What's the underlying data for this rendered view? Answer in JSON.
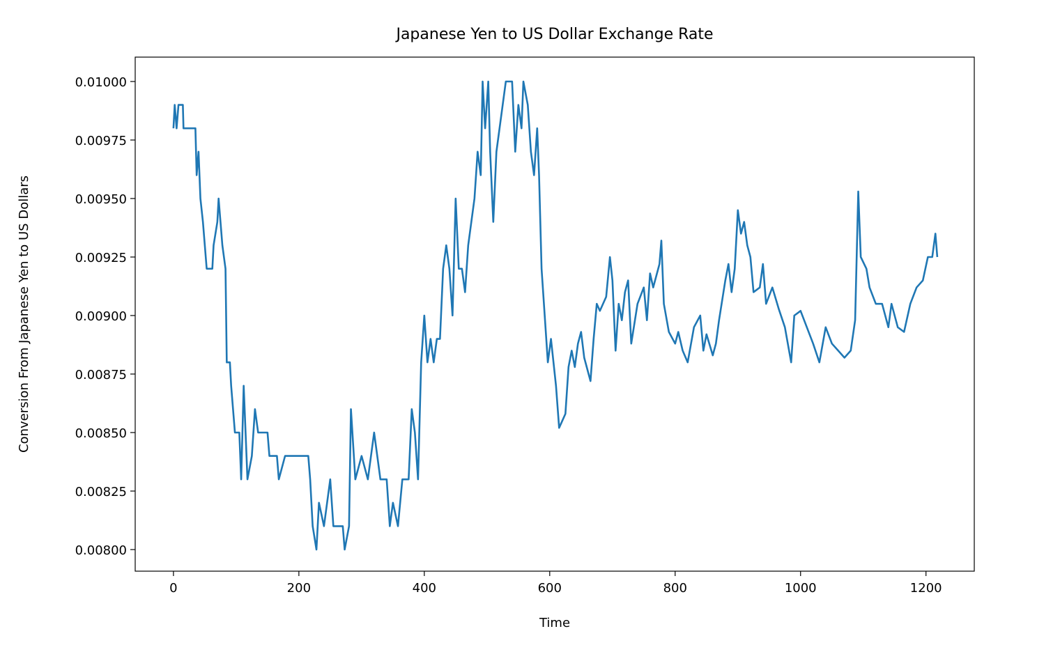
{
  "chart_data": {
    "type": "line",
    "title": "Japanese Yen to US Dollar Exchange Rate",
    "x_label": "Time",
    "y_label": "Conversion From Japanese Yen to US Dollars",
    "xlim": [
      -61,
      1277
    ],
    "ylim": [
      0.0079077,
      0.0101042
    ],
    "xticks": [
      0,
      200,
      400,
      600,
      800,
      1000,
      1200
    ],
    "yticks": [
      {
        "value": 0.008,
        "label": "0.00800"
      },
      {
        "value": 0.00825,
        "label": "0.00825"
      },
      {
        "value": 0.0085,
        "label": "0.00850"
      },
      {
        "value": 0.00875,
        "label": "0.00875"
      },
      {
        "value": 0.009,
        "label": "0.00900"
      },
      {
        "value": 0.00925,
        "label": "0.00925"
      },
      {
        "value": 0.0095,
        "label": "0.00950"
      },
      {
        "value": 0.00975,
        "label": "0.00975"
      },
      {
        "value": 0.01,
        "label": "0.01000"
      }
    ],
    "series": [
      {
        "color": "#1f77b4",
        "x": [
          0,
          2,
          5,
          8,
          15,
          16,
          25,
          35,
          37,
          40,
          43,
          47,
          50,
          53,
          62,
          64,
          70,
          72,
          75,
          78,
          83,
          85,
          90,
          92,
          95,
          98,
          105,
          108,
          112,
          118,
          125,
          130,
          135,
          150,
          153,
          165,
          168,
          178,
          200,
          215,
          218,
          222,
          228,
          232,
          240,
          250,
          255,
          270,
          273,
          280,
          283,
          290,
          300,
          310,
          320,
          325,
          330,
          340,
          345,
          350,
          358,
          365,
          375,
          380,
          385,
          390,
          395,
          400,
          405,
          410,
          415,
          420,
          425,
          430,
          435,
          440,
          445,
          450,
          455,
          460,
          465,
          470,
          475,
          480,
          485,
          490,
          493,
          497,
          502,
          505,
          510,
          515,
          520,
          525,
          530,
          540,
          545,
          550,
          555,
          558,
          565,
          570,
          575,
          580,
          583,
          587,
          592,
          597,
          602,
          610,
          615,
          620,
          625,
          630,
          635,
          640,
          645,
          650,
          655,
          665,
          670,
          675,
          680,
          690,
          696,
          700,
          705,
          710,
          715,
          720,
          725,
          730,
          740,
          750,
          755,
          760,
          765,
          775,
          778,
          782,
          790,
          800,
          805,
          812,
          820,
          830,
          840,
          845,
          850,
          860,
          865,
          870,
          880,
          885,
          890,
          895,
          900,
          905,
          910,
          915,
          920,
          925,
          935,
          940,
          945,
          955,
          965,
          975,
          985,
          990,
          1000,
          1010,
          1020,
          1030,
          1040,
          1050,
          1060,
          1070,
          1080,
          1087,
          1092,
          1096,
          1105,
          1110,
          1120,
          1130,
          1140,
          1145,
          1155,
          1165,
          1175,
          1185,
          1195,
          1203,
          1210,
          1215,
          1218
        ],
        "values": [
          0.0098,
          0.0099,
          0.0098,
          0.0099,
          0.0099,
          0.0098,
          0.0098,
          0.0098,
          0.0096,
          0.0097,
          0.0095,
          0.0094,
          0.0093,
          0.0092,
          0.0092,
          0.0093,
          0.0094,
          0.0095,
          0.0094,
          0.0093,
          0.0092,
          0.0088,
          0.0088,
          0.0087,
          0.0086,
          0.0085,
          0.0085,
          0.0083,
          0.0087,
          0.0083,
          0.0084,
          0.0086,
          0.0085,
          0.0085,
          0.0084,
          0.0084,
          0.0083,
          0.0084,
          0.0084,
          0.0084,
          0.0083,
          0.0081,
          0.008,
          0.0082,
          0.0081,
          0.0083,
          0.0081,
          0.0081,
          0.008,
          0.0081,
          0.0086,
          0.0083,
          0.0084,
          0.0083,
          0.0085,
          0.0084,
          0.0083,
          0.0083,
          0.0081,
          0.0082,
          0.0081,
          0.0083,
          0.0083,
          0.0086,
          0.0085,
          0.0083,
          0.0088,
          0.009,
          0.0088,
          0.0089,
          0.0088,
          0.0089,
          0.0089,
          0.0092,
          0.0093,
          0.0092,
          0.009,
          0.0095,
          0.0092,
          0.0092,
          0.0091,
          0.0093,
          0.0094,
          0.0095,
          0.0097,
          0.0096,
          0.01,
          0.0098,
          0.01,
          0.0097,
          0.0094,
          0.0097,
          0.0098,
          0.0099,
          0.01,
          0.01,
          0.0097,
          0.0099,
          0.0098,
          0.01,
          0.0099,
          0.0097,
          0.0096,
          0.0098,
          0.0096,
          0.0092,
          0.009,
          0.0088,
          0.0089,
          0.0087,
          0.00852,
          0.00855,
          0.00858,
          0.00878,
          0.00885,
          0.00878,
          0.00888,
          0.00893,
          0.00882,
          0.00872,
          0.0089,
          0.00905,
          0.00902,
          0.00908,
          0.00925,
          0.00915,
          0.00885,
          0.00905,
          0.00898,
          0.0091,
          0.00915,
          0.00888,
          0.00905,
          0.00912,
          0.00898,
          0.00918,
          0.00912,
          0.00922,
          0.00932,
          0.00905,
          0.00893,
          0.00888,
          0.00893,
          0.00885,
          0.0088,
          0.00895,
          0.009,
          0.00885,
          0.00892,
          0.00883,
          0.00888,
          0.00898,
          0.00915,
          0.00922,
          0.0091,
          0.0092,
          0.00945,
          0.00935,
          0.0094,
          0.0093,
          0.00925,
          0.0091,
          0.00912,
          0.00922,
          0.00905,
          0.00912,
          0.00903,
          0.00895,
          0.0088,
          0.009,
          0.00902,
          0.00895,
          0.00888,
          0.0088,
          0.00895,
          0.00888,
          0.00885,
          0.00882,
          0.00885,
          0.00898,
          0.00953,
          0.00925,
          0.0092,
          0.00912,
          0.00905,
          0.00905,
          0.00895,
          0.00905,
          0.00895,
          0.00893,
          0.00905,
          0.00912,
          0.00915,
          0.00925,
          0.00925,
          0.00935,
          0.00925
        ]
      }
    ]
  }
}
